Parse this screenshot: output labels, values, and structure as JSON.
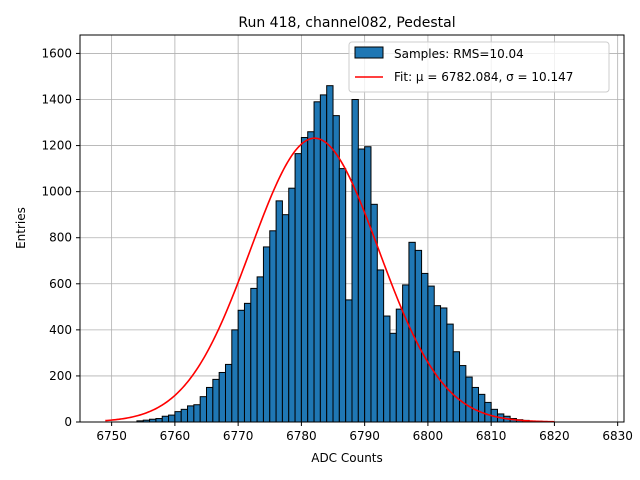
{
  "chart_data": {
    "type": "bar",
    "title": "Run 418, channel082, Pedestal",
    "xlabel": "ADC Counts",
    "ylabel": "Entries",
    "xlim": [
      6745,
      6831
    ],
    "ylim": [
      0,
      1680
    ],
    "xticks": [
      6750,
      6760,
      6770,
      6780,
      6790,
      6800,
      6810,
      6820,
      6830
    ],
    "yticks": [
      0,
      200,
      400,
      600,
      800,
      1000,
      1200,
      1400,
      1600
    ],
    "grid": true,
    "legend_position": "top-right",
    "bar_color": "#1f77b4",
    "fit_color": "#ff0000",
    "histogram": {
      "name": "Samples: RMS=10.04",
      "bin_width": 1,
      "bins": [
        [
          6754,
          5
        ],
        [
          6755,
          8
        ],
        [
          6756,
          12
        ],
        [
          6757,
          15
        ],
        [
          6758,
          25
        ],
        [
          6759,
          30
        ],
        [
          6760,
          45
        ],
        [
          6761,
          55
        ],
        [
          6762,
          70
        ],
        [
          6763,
          75
        ],
        [
          6764,
          110
        ],
        [
          6765,
          150
        ],
        [
          6766,
          185
        ],
        [
          6767,
          215
        ],
        [
          6768,
          250
        ],
        [
          6769,
          400
        ],
        [
          6770,
          485
        ],
        [
          6771,
          515
        ],
        [
          6772,
          580
        ],
        [
          6773,
          630
        ],
        [
          6774,
          760
        ],
        [
          6775,
          830
        ],
        [
          6776,
          960
        ],
        [
          6777,
          900
        ],
        [
          6778,
          1015
        ],
        [
          6779,
          1165
        ],
        [
          6780,
          1235
        ],
        [
          6781,
          1260
        ],
        [
          6782,
          1390
        ],
        [
          6783,
          1420
        ],
        [
          6784,
          1460
        ],
        [
          6785,
          1330
        ],
        [
          6786,
          1100
        ],
        [
          6787,
          530
        ],
        [
          6788,
          1400
        ],
        [
          6789,
          1185
        ],
        [
          6790,
          1195
        ],
        [
          6791,
          945
        ],
        [
          6792,
          660
        ],
        [
          6793,
          460
        ],
        [
          6794,
          385
        ],
        [
          6795,
          490
        ],
        [
          6796,
          595
        ],
        [
          6797,
          780
        ],
        [
          6798,
          745
        ],
        [
          6799,
          645
        ],
        [
          6800,
          590
        ],
        [
          6801,
          505
        ],
        [
          6802,
          495
        ],
        [
          6803,
          425
        ],
        [
          6804,
          305
        ],
        [
          6805,
          245
        ],
        [
          6806,
          195
        ],
        [
          6807,
          150
        ],
        [
          6808,
          120
        ],
        [
          6809,
          85
        ],
        [
          6810,
          55
        ],
        [
          6811,
          35
        ],
        [
          6812,
          25
        ],
        [
          6813,
          15
        ],
        [
          6814,
          10
        ],
        [
          6815,
          7
        ],
        [
          6816,
          4
        ],
        [
          6817,
          3
        ]
      ]
    },
    "fit": {
      "name": "Fit: μ = 6782.084, σ = 10.147",
      "mu": 6782.084,
      "sigma": 10.147,
      "amplitude": 1232,
      "x_range": [
        6749,
        6820
      ]
    }
  }
}
